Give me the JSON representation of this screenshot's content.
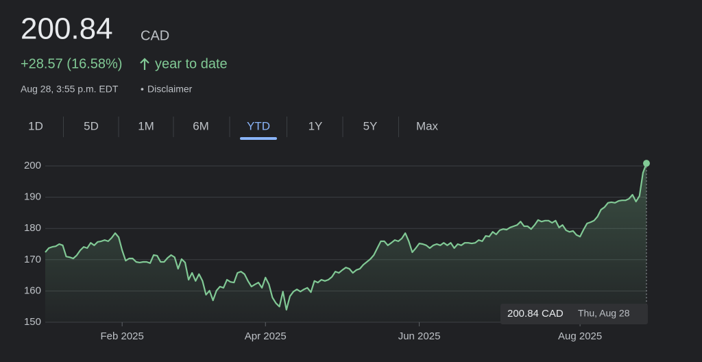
{
  "price": "200.84",
  "currency": "CAD",
  "change": "+28.57 (16.58%)",
  "change_period": "year to date",
  "timestamp": "Aug 28, 3:55 p.m. EDT",
  "disclaimer": "Disclaimer",
  "tabs": [
    "1D",
    "5D",
    "1M",
    "6M",
    "YTD",
    "1Y",
    "5Y",
    "Max"
  ],
  "active_tab": "YTD",
  "chart_data": {
    "type": "line",
    "color": "#81c995",
    "grid": true,
    "ylim": [
      150,
      200
    ],
    "yticks": [
      150,
      160,
      170,
      180,
      190,
      200
    ],
    "xlim": [
      0,
      172
    ],
    "xticks": [
      {
        "value": 22,
        "label": "Feb 2025"
      },
      {
        "value": 63,
        "label": "Apr 2025"
      },
      {
        "value": 107,
        "label": "Jun 2025"
      },
      {
        "value": 153,
        "label": "Aug 2025"
      }
    ],
    "values": [
      172.4,
      173.7,
      174.1,
      174.3,
      175,
      174.6,
      171,
      170.8,
      170.4,
      171.4,
      173,
      174.1,
      173.7,
      175.4,
      174.6,
      175.7,
      175.9,
      176.3,
      175.9,
      177,
      178.5,
      177.2,
      173,
      169.7,
      170.4,
      170.4,
      169.3,
      169.1,
      169.3,
      169.3,
      168.9,
      171.5,
      171.3,
      169.3,
      169.3,
      170.6,
      171.5,
      170.8,
      167.1,
      170.2,
      169.1,
      163.6,
      165.8,
      163.2,
      165.4,
      163.2,
      158.8,
      160.1,
      157,
      160.1,
      161.4,
      161,
      163.6,
      162.9,
      162.7,
      165.8,
      166.2,
      165.4,
      163.2,
      161.4,
      162.1,
      162.7,
      161,
      164.3,
      162.1,
      157.9,
      156.1,
      155,
      159.8,
      154,
      158.3,
      159.8,
      160.5,
      159.8,
      160.5,
      161,
      159.6,
      163.2,
      162.7,
      163.6,
      163.2,
      163.6,
      164.5,
      166.2,
      165.8,
      166.7,
      167.5,
      167.1,
      165.8,
      166.7,
      167.1,
      168.4,
      169.3,
      170.2,
      171.5,
      173.7,
      175.9,
      175.9,
      174.6,
      175.4,
      176.3,
      175.9,
      176.8,
      178.5,
      175.9,
      172.4,
      173.7,
      175.2,
      175,
      174.6,
      173.7,
      174.6,
      175,
      174.6,
      175.4,
      174.6,
      175.4,
      173.7,
      175,
      174.6,
      175.4,
      175.4,
      175.2,
      175.4,
      176.3,
      175.9,
      177.6,
      177.4,
      178.9,
      178.1,
      179.4,
      179.8,
      179.6,
      180.3,
      180.7,
      181.1,
      182.2,
      180.7,
      180.7,
      179.8,
      181.1,
      182.7,
      182.2,
      182.5,
      182.5,
      181.8,
      182.5,
      180.3,
      181.1,
      179.4,
      178.9,
      179.2,
      177.9,
      177.4,
      179.6,
      181.6,
      182,
      182.5,
      183.8,
      186,
      186.8,
      188.2,
      188.4,
      188.2,
      188.8,
      189,
      189,
      189.5,
      190.8,
      188.6,
      190.4,
      197.8,
      200.84
    ],
    "tooltip": {
      "value_label": "200.84 CAD",
      "date": "Thu, Aug 28"
    }
  }
}
